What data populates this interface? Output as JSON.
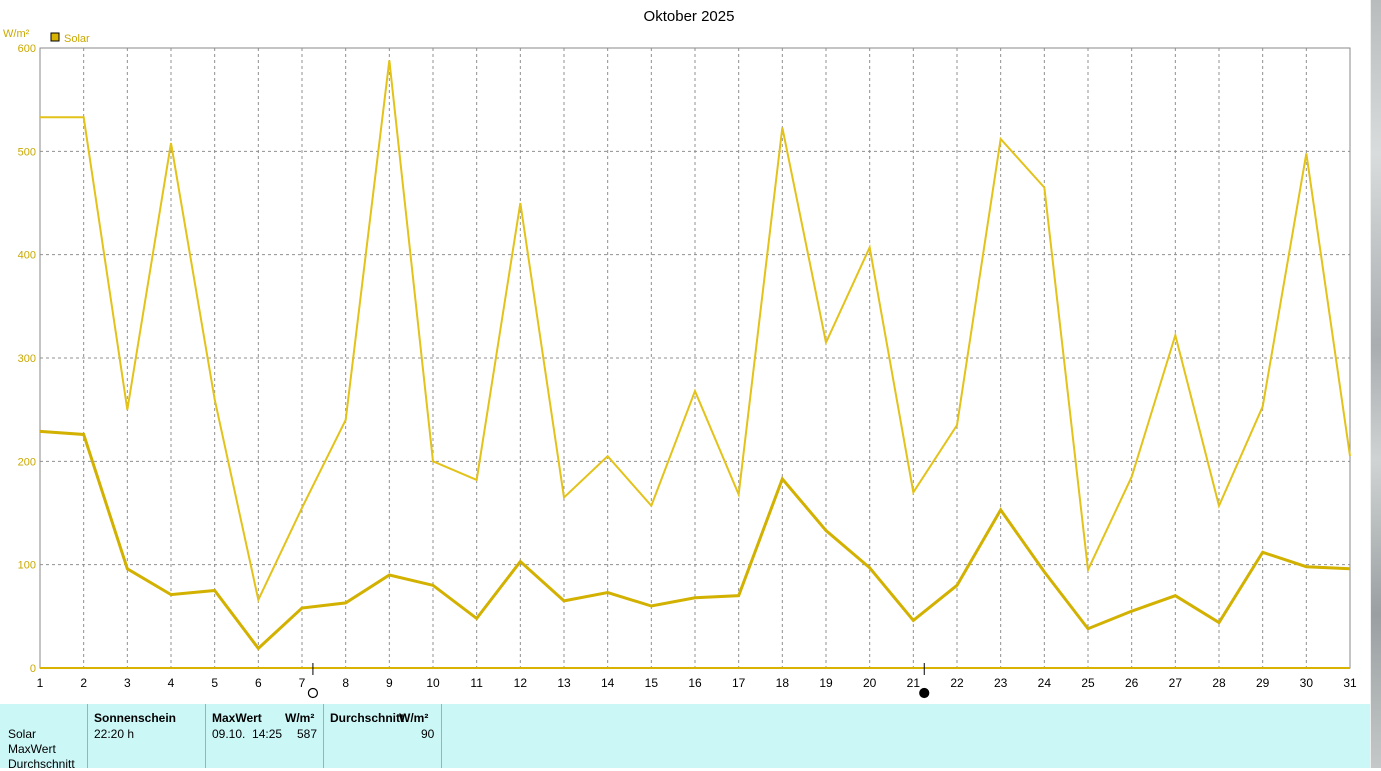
{
  "chart_data": {
    "type": "line",
    "title": "Oktober 2025",
    "ylabel": "W/m²",
    "legend": [
      {
        "name": "Solar",
        "color": "#d8b400"
      }
    ],
    "ylim": [
      0,
      600
    ],
    "yticks": [
      "0",
      "100",
      "200",
      "300",
      "400",
      "500",
      "600"
    ],
    "categories": [
      "1",
      "2",
      "3",
      "4",
      "5",
      "6",
      "7",
      "8",
      "9",
      "10",
      "11",
      "12",
      "13",
      "14",
      "15",
      "16",
      "17",
      "18",
      "19",
      "20",
      "21",
      "22",
      "23",
      "24",
      "25",
      "26",
      "27",
      "28",
      "29",
      "30",
      "31"
    ],
    "grid": true,
    "series": [
      {
        "kind": "max",
        "color": "#e3c21a",
        "values": [
          533,
          533,
          250,
          508,
          260,
          66,
          155,
          240,
          588,
          200,
          182,
          450,
          165,
          205,
          157,
          268,
          168,
          523,
          315,
          407,
          170,
          235,
          512,
          465,
          95,
          185,
          322,
          157,
          253,
          498,
          205
        ]
      },
      {
        "kind": "avg",
        "color": "#d2b100",
        "values": [
          229,
          226,
          96,
          71,
          75,
          19,
          58,
          63,
          90,
          80,
          48,
          103,
          65,
          73,
          60,
          68,
          70,
          183,
          133,
          97,
          46,
          80,
          153,
          93,
          38,
          55,
          70,
          44,
          112,
          98,
          96
        ]
      }
    ],
    "moon_markers": [
      {
        "kind": "full-moon",
        "after_day": "7"
      },
      {
        "kind": "new-moon",
        "after_day": "21"
      }
    ]
  },
  "summary": {
    "row_labels": [
      "Solar",
      "MaxWert",
      "Durchschnitt"
    ],
    "sunshine_header": "Sonnenschein",
    "sunshine_value": "22:20 h",
    "max_header": "MaxWert",
    "max_unit": "W/m²",
    "max_date": "09.10.  14:25",
    "max_value": "587",
    "avg_header": "Durchschnitt",
    "avg_unit": "W/m²",
    "avg_value": "90"
  }
}
